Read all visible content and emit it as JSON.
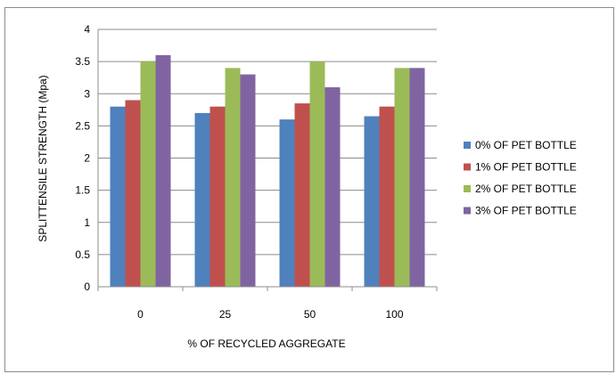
{
  "chart_data": {
    "type": "bar",
    "title": "",
    "xlabel": "% OF RECYCLED AGGREGATE",
    "ylabel": "SPLITTENSILE STRENGTH (Mpa)",
    "categories": [
      "0",
      "25",
      "50",
      "100"
    ],
    "series": [
      {
        "name": "0% OF PET BOTTLE",
        "color": "#4f81bd",
        "values": [
          2.8,
          2.7,
          2.6,
          2.65
        ]
      },
      {
        "name": "1% OF PET BOTTLE",
        "color": "#c0504d",
        "values": [
          2.9,
          2.8,
          2.85,
          2.8
        ]
      },
      {
        "name": "2% OF PET BOTTLE",
        "color": "#9bbb59",
        "values": [
          3.5,
          3.4,
          3.5,
          3.4
        ]
      },
      {
        "name": "3% OF PET BOTTLE",
        "color": "#8064a2",
        "values": [
          3.6,
          3.3,
          3.1,
          3.4
        ]
      }
    ],
    "ylim": [
      0,
      4
    ],
    "yticks": [
      "0",
      "0.5",
      "1",
      "1.5",
      "2",
      "2.5",
      "3",
      "3.5",
      "4"
    ],
    "grid": true,
    "legend_position": "right"
  }
}
